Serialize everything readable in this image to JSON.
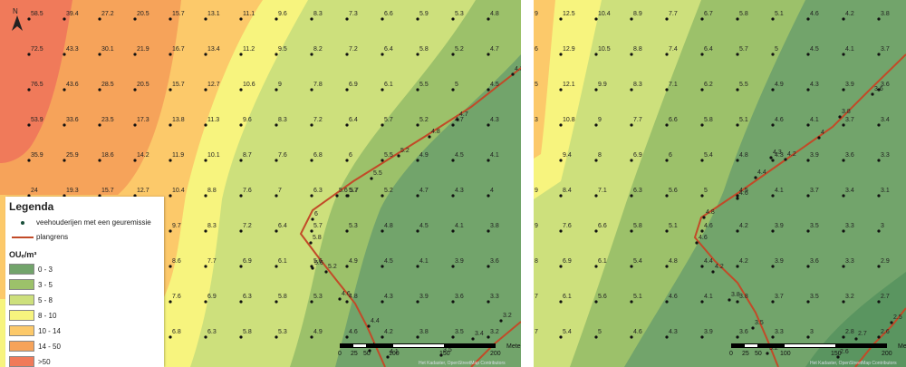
{
  "legend": {
    "title": "Legenda",
    "farm_label": "veehouderijen met een geuremissie",
    "border_label": "plangrens",
    "unit": "OUₑ/m³",
    "classes": [
      {
        "label": "0 - 3",
        "color": "#72a46b"
      },
      {
        "label": "3 - 5",
        "color": "#9cc16a"
      },
      {
        "label": "5 - 8",
        "color": "#cde07c"
      },
      {
        "label": "8 - 10",
        "color": "#f7f47e"
      },
      {
        "label": "10 - 14",
        "color": "#fcc96a"
      },
      {
        "label": "14 - 50",
        "color": "#f6a35a"
      },
      {
        "label": ">50",
        "color": "#f07a5a"
      }
    ]
  },
  "scalebar": {
    "ticks": [
      "0",
      "25",
      "50",
      "100",
      "150",
      "200"
    ],
    "unit": "Meters"
  },
  "attribution": "Het Kadaster, OpenStreetMap Contributors",
  "north_label": "N",
  "maps": [
    {
      "name": "left",
      "rows": [
        {
          "y": 17,
          "values": [
            "58.5",
            "39.4",
            "27.2",
            "20.5",
            "15.7",
            "13.1",
            "11.1",
            "9.6",
            "8.3",
            "7.3",
            "6.6",
            "5.9",
            "5.3",
            "4.8"
          ]
        },
        {
          "y": 56,
          "values": [
            "72.5",
            "43.3",
            "30.1",
            "21.9",
            "16.7",
            "13.4",
            "11.2",
            "9.5",
            "8.2",
            "7.2",
            "6.4",
            "5.8",
            "5.2",
            "4.7"
          ]
        },
        {
          "y": 95,
          "values": [
            "76.5",
            "43.6",
            "28.5",
            "20.5",
            "15.7",
            "12.7",
            "10.6",
            "9",
            "7.8",
            "6.9",
            "6.1",
            "5.5",
            "5",
            "4.5"
          ]
        },
        {
          "y": 134,
          "values": [
            "53.9",
            "33.6",
            "23.5",
            "17.3",
            "13.8",
            "11.3",
            "9.6",
            "8.3",
            "7.2",
            "6.4",
            "5.7",
            "5.2",
            "4.7",
            "4.3"
          ]
        },
        {
          "y": 173,
          "values": [
            "35.9",
            "25.9",
            "18.6",
            "14.2",
            "11.9",
            "10.1",
            "8.7",
            "7.6",
            "6.8",
            "6",
            "5.5",
            "4.9",
            "4.5",
            "4.1"
          ]
        },
        {
          "y": 212,
          "values": [
            "24",
            "19.3",
            "15.7",
            "12.7",
            "10.4",
            "8.8",
            "7.6",
            "7",
            "6.3",
            "5.7",
            "5.2",
            "4.7",
            "4.3",
            "4"
          ]
        },
        {
          "y": 251,
          "values": [
            "",
            "",
            "",
            "",
            "9.7",
            "8.3",
            "7.2",
            "6.4",
            "5.7",
            "5.3",
            "4.8",
            "4.5",
            "4.1",
            "3.8"
          ]
        },
        {
          "y": 290,
          "values": [
            "",
            "",
            "",
            "",
            "8.6",
            "7.7",
            "6.9",
            "6.1",
            "5.6",
            "4.9",
            "4.5",
            "4.1",
            "3.9",
            "3.6"
          ]
        },
        {
          "y": 329,
          "values": [
            "",
            "",
            "",
            "",
            "7.6",
            "6.9",
            "6.3",
            "5.8",
            "5.3",
            "4.8",
            "4.3",
            "3.9",
            "3.6",
            "3.3"
          ]
        },
        {
          "y": 368,
          "values": [
            "",
            "",
            "",
            "",
            "6.8",
            "6.3",
            "5.8",
            "5.3",
            "4.9",
            "4.6",
            "4.2",
            "3.8",
            "3.5",
            "3.2"
          ]
        }
      ],
      "border_labels": [
        "4.3",
        "4.7",
        "4.8",
        "5.2",
        "5.5",
        "5.6",
        "5.7",
        "6",
        "5.8",
        "5.6",
        "5.2",
        "4.6",
        "4.4",
        "4.1",
        "4",
        "3.4",
        "3.2",
        "3.5"
      ],
      "landmarks": []
    },
    {
      "name": "right",
      "rows": [
        {
          "y": 17,
          "values": [
            "12.5",
            "10.4",
            "8.9",
            "7.7",
            "6.7",
            "5.8",
            "5.1",
            "4.6",
            "4.2",
            "3.8"
          ]
        },
        {
          "y": 56,
          "values": [
            "12.9",
            "10.5",
            "8.8",
            "7.4",
            "6.4",
            "5.7",
            "5",
            "4.5",
            "4.1",
            "3.7"
          ]
        },
        {
          "y": 95,
          "values": [
            "12.1",
            "9.9",
            "8.3",
            "7.1",
            "6.2",
            "5.5",
            "4.9",
            "4.3",
            "3.9",
            "3.6"
          ]
        },
        {
          "y": 134,
          "values": [
            "10.8",
            "9",
            "7.7",
            "6.6",
            "5.8",
            "5.1",
            "4.6",
            "4.1",
            "3.7",
            "3.4"
          ]
        },
        {
          "y": 173,
          "values": [
            "9.4",
            "8",
            "6.9",
            "6",
            "5.4",
            "4.8",
            "4.3",
            "3.9",
            "3.6",
            "3.3"
          ]
        },
        {
          "y": 212,
          "values": [
            "8.4",
            "7.1",
            "6.3",
            "5.6",
            "5",
            "4.5",
            "4.1",
            "3.7",
            "3.4",
            "3.1"
          ]
        },
        {
          "y": 251,
          "values": [
            "7.6",
            "6.6",
            "5.8",
            "5.1",
            "4.6",
            "4.2",
            "3.9",
            "3.5",
            "3.3",
            "3"
          ]
        },
        {
          "y": 290,
          "values": [
            "6.9",
            "6.1",
            "5.4",
            "4.8",
            "4.4",
            "4.2",
            "3.9",
            "3.6",
            "3.3",
            "2.9"
          ]
        },
        {
          "y": 329,
          "values": [
            "6.1",
            "5.6",
            "5.1",
            "4.6",
            "4.1",
            "3.8",
            "3.7",
            "3.5",
            "3.2",
            "2.7"
          ]
        },
        {
          "y": 368,
          "values": [
            "5.4",
            "5",
            "4.6",
            "4.3",
            "3.9",
            "3.6",
            "3.3",
            "3",
            "2.8",
            "2.6"
          ]
        }
      ],
      "left_edge": [
        "9",
        "6",
        "5",
        "3",
        "9",
        "9",
        "8",
        "7",
        "7"
      ],
      "border_labels": [
        "3.6",
        "3.8",
        "4",
        "4.2",
        "4.3",
        "4.4",
        "4.6",
        "4.8",
        "4.6",
        "4.2",
        "3.8",
        "3.5",
        "3.2",
        "2.7",
        "2.5",
        "2.6"
      ]
    }
  ]
}
